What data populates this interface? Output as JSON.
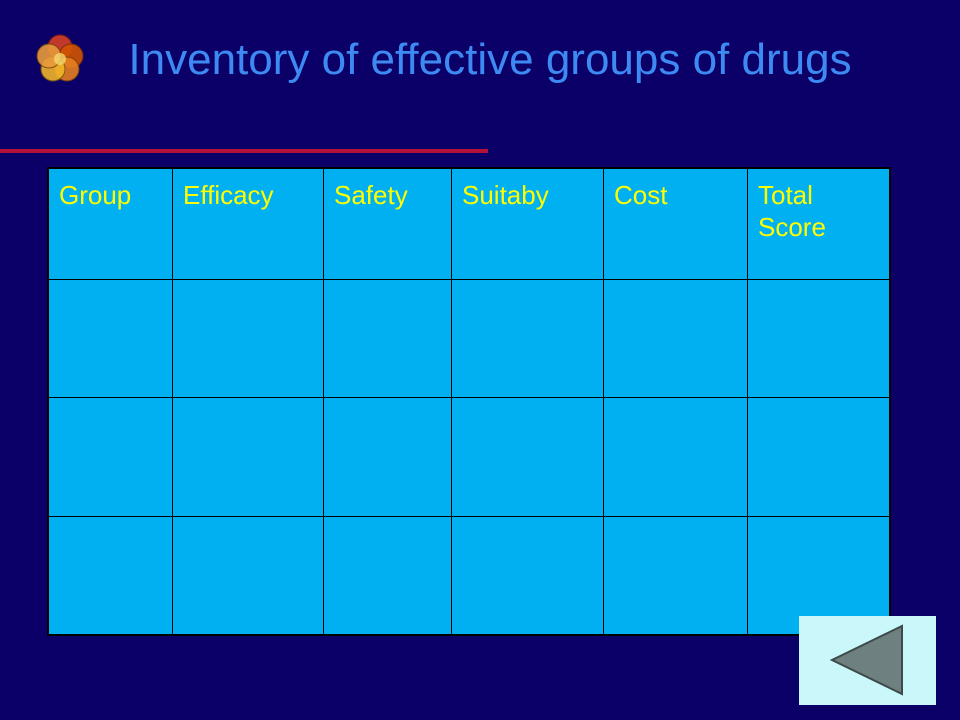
{
  "slide": {
    "title": "Inventory of effective groups of drugs"
  },
  "table": {
    "headers": [
      "Group",
      "Efficacy",
      "Safety",
      "Suitaby",
      "Cost",
      "Total Score"
    ],
    "rows": [
      [
        "",
        "",
        "",
        "",
        "",
        ""
      ],
      [
        "",
        "",
        "",
        "",
        "",
        ""
      ],
      [
        "",
        "",
        "",
        "",
        "",
        ""
      ]
    ]
  },
  "navigation": {
    "back_icon": "triangle-left-icon"
  },
  "colors": {
    "background": "#0b0068",
    "title": "#3d8bf2",
    "table_fill": "#00b0f0",
    "header_text": "#ffff00",
    "rule": "#b3123a",
    "nav_button": "#c9f7fa",
    "nav_arrow": "#6f8080"
  }
}
